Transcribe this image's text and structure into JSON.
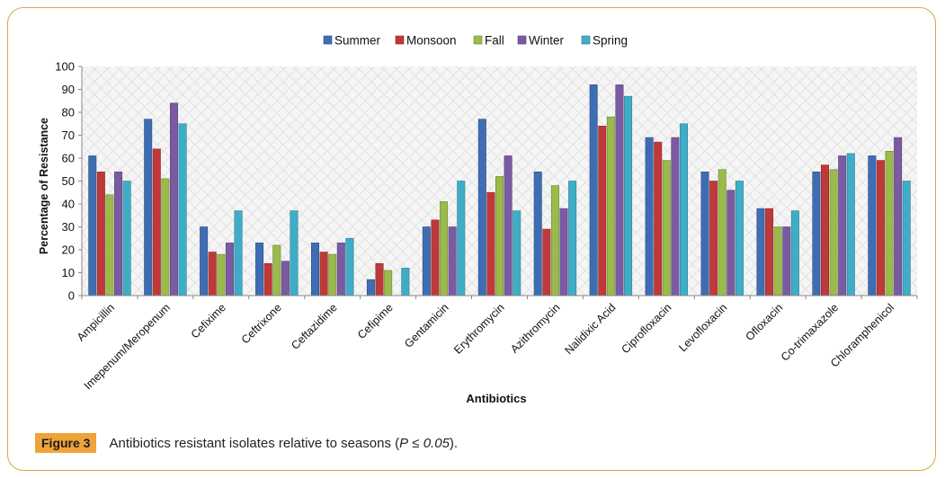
{
  "chart_data": {
    "type": "bar",
    "title": "",
    "xlabel": "Antibiotics",
    "ylabel": "Percentage of Resistance",
    "ylim": [
      0,
      100
    ],
    "yticks": [
      0,
      10,
      20,
      30,
      40,
      50,
      60,
      70,
      80,
      90,
      100
    ],
    "grid": false,
    "legend_position": "top-center",
    "categories": [
      "Ampicillin",
      "Imepenum/Meropenum",
      "Cefixime",
      "Ceftrixone",
      "Ceftazidime",
      "Cefipime",
      "Gentamicin",
      "Erythromycin",
      "Azithromycin",
      "Nalidixic Acid",
      "Ciprofloxacin",
      "Levofloxacin",
      "Ofloxacin",
      "Co-trimaxazole",
      "Chloramphenicol"
    ],
    "series": [
      {
        "name": "Summer",
        "color": "#3f6db3",
        "values": [
          61,
          77,
          30,
          23,
          23,
          7,
          30,
          77,
          54,
          92,
          69,
          54,
          38,
          54,
          61
        ]
      },
      {
        "name": "Monsoon",
        "color": "#c0393a",
        "values": [
          54,
          64,
          19,
          14,
          19,
          14,
          33,
          45,
          29,
          74,
          67,
          50,
          38,
          57,
          59
        ]
      },
      {
        "name": "Fall",
        "color": "#9aba4b",
        "values": [
          44,
          51,
          18,
          22,
          18,
          11,
          41,
          52,
          48,
          78,
          59,
          55,
          30,
          55,
          63
        ]
      },
      {
        "name": "Winter",
        "color": "#7a5ba3",
        "values": [
          54,
          84,
          23,
          15,
          23,
          0,
          30,
          61,
          38,
          92,
          69,
          46,
          30,
          61,
          69
        ]
      },
      {
        "name": "Spring",
        "color": "#3fadc8",
        "values": [
          50,
          75,
          37,
          37,
          25,
          12,
          50,
          37,
          50,
          87,
          75,
          50,
          37,
          62,
          50
        ]
      }
    ]
  },
  "caption": {
    "label": "Figure 3",
    "text_before": "Antibiotics resistant isolates relative to seasons (",
    "p_symbol": "P",
    "text_between": " ≤ ",
    "p_value": "0.05",
    "text_after": ")."
  }
}
